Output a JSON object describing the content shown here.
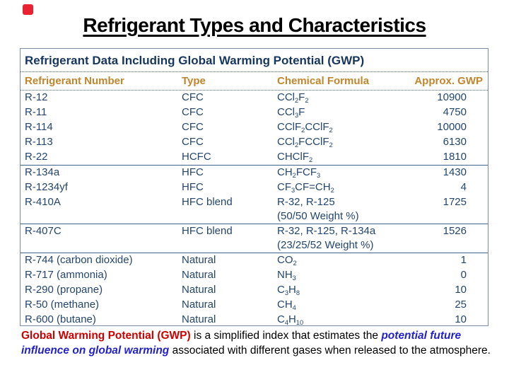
{
  "slide": {
    "title": "Refrigerant Types and Characteristics"
  },
  "table": {
    "title": "Refrigerant Data Including Global Warming Potential (GWP)",
    "columns": [
      "Refrigerant Number",
      "Type",
      "Chemical Formula",
      "Approx. GWP"
    ],
    "sections": [
      {
        "rows": [
          {
            "number": "R-12",
            "type": "CFC",
            "formula": "CCl_2F_2",
            "gwp": "10900"
          },
          {
            "number": "R-11",
            "type": "CFC",
            "formula": "CCl_3F",
            "gwp": "4750"
          },
          {
            "number": "R-114",
            "type": "CFC",
            "formula": "CClF_2CClF_2",
            "gwp": "10000"
          },
          {
            "number": "R-113",
            "type": "CFC",
            "formula": "CCl_2FCClF_2",
            "gwp": "6130"
          },
          {
            "number": "R-22",
            "type": "HCFC",
            "formula": "CHClF_2",
            "gwp": "1810"
          }
        ]
      },
      {
        "rows": [
          {
            "number": "R-134a",
            "type": "HFC",
            "formula": "CH_2FCF_3",
            "gwp": "1430"
          },
          {
            "number": "R-1234yf",
            "type": "HFC",
            "formula": "CF_3CF=CH_2",
            "gwp": "4"
          },
          {
            "number": "R-410A",
            "type": "HFC blend",
            "formula": "R-32, R-125",
            "formula_note": "(50/50 Weight %)",
            "gwp": "1725"
          }
        ]
      },
      {
        "rows": [
          {
            "number": "R-407C",
            "type": "HFC blend",
            "formula": "R-32, R-125, R-134a",
            "formula_note": "(23/25/52 Weight %)",
            "gwp": "1526"
          }
        ]
      },
      {
        "rows": [
          {
            "number": "R-744 (carbon dioxide)",
            "type": "Natural",
            "formula": "CO_2",
            "gwp": "1"
          },
          {
            "number": "R-717 (ammonia)",
            "type": "Natural",
            "formula": "NH_3",
            "gwp": "0"
          },
          {
            "number": "R-290 (propane)",
            "type": "Natural",
            "formula": "C_3H_8",
            "gwp": "10"
          },
          {
            "number": "R-50 (methane)",
            "type": "Natural",
            "formula": "CH_4",
            "gwp": "25"
          },
          {
            "number": "R-600 (butane)",
            "type": "Natural",
            "formula": "C_4H_10",
            "gwp": "10"
          }
        ]
      }
    ]
  },
  "footnote": {
    "red_text": "Global Warming Potential (GWP)",
    "black_text_1": " is a simplified index that estimates the ",
    "blue_text": "potential future influence on global warming",
    "black_text_2": " associated with different gases when released to the atmosphere."
  },
  "colors": {
    "marker-red": "#ea2330",
    "table-navy": "#24466e",
    "table-title-navy": "#17365d",
    "header-orange": "#c0862e",
    "table-border": "#7b8da4",
    "table-dotted": "#4a6a94",
    "table-separator": "#44618c",
    "accent-red": "#cc0000",
    "accent-blue": "#2222cc"
  }
}
